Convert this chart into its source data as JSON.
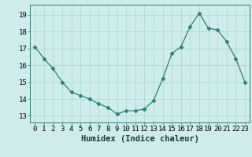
{
  "x": [
    0,
    1,
    2,
    3,
    4,
    5,
    6,
    7,
    8,
    9,
    10,
    11,
    12,
    13,
    14,
    15,
    16,
    17,
    18,
    19,
    20,
    21,
    22,
    23
  ],
  "y": [
    17.1,
    16.4,
    15.8,
    15.0,
    14.4,
    14.2,
    14.0,
    13.7,
    13.5,
    13.1,
    13.3,
    13.3,
    13.4,
    13.9,
    15.2,
    16.7,
    17.1,
    18.3,
    19.1,
    18.2,
    18.1,
    17.4,
    16.4,
    15.0
  ],
  "line_color": "#2d7f75",
  "marker": "D",
  "marker_size": 2.5,
  "bg_color": "#ceecea",
  "grid_color": "#b0d8d4",
  "xlabel": "Humidex (Indice chaleur)",
  "xlabel_fontsize": 7.5,
  "ylabel_ticks": [
    13,
    14,
    15,
    16,
    17,
    18,
    19
  ],
  "xlim": [
    -0.5,
    23.5
  ],
  "ylim": [
    12.6,
    19.6
  ],
  "tick_fontsize": 6.5
}
